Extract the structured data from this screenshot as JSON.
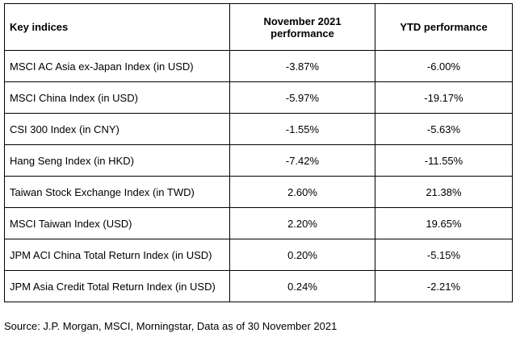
{
  "table": {
    "headers": [
      "Key indices",
      "November 2021 performance",
      "YTD performance"
    ],
    "rows": [
      [
        "MSCI AC Asia ex-Japan Index (in USD)",
        "-3.87%",
        "-6.00%"
      ],
      [
        "MSCI China Index (in USD)",
        "-5.97%",
        "-19.17%"
      ],
      [
        "CSI 300 Index (in CNY)",
        "-1.55%",
        "-5.63%"
      ],
      [
        "Hang Seng Index (in HKD)",
        "-7.42%",
        "-11.55%"
      ],
      [
        "Taiwan Stock Exchange Index (in TWD)",
        "2.60%",
        "21.38%"
      ],
      [
        "MSCI Taiwan Index (USD)",
        "2.20%",
        "19.65%"
      ],
      [
        "JPM ACI China Total Return Index (in USD)",
        "0.20%",
        "-5.15%"
      ],
      [
        "JPM Asia Credit Total Return Index (in USD)",
        "0.24%",
        "-2.21%"
      ]
    ]
  },
  "footer": {
    "source": "Source: J.P. Morgan, MSCI, Morningstar, Data as of 30 November 2021"
  }
}
